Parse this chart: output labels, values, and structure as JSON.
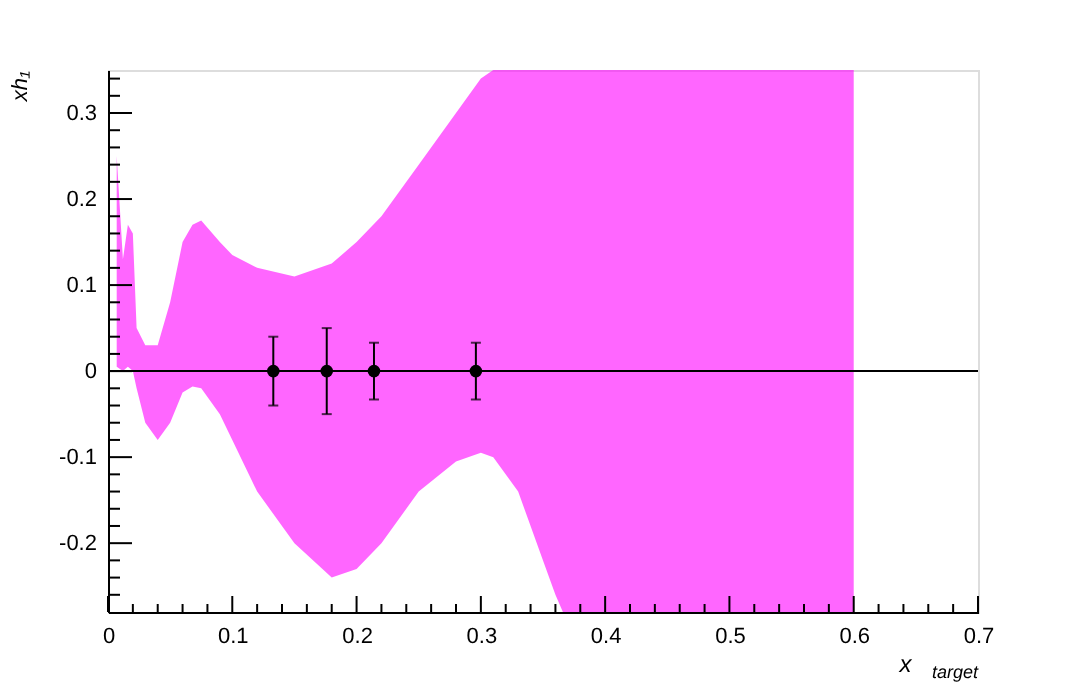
{
  "chart_data": {
    "type": "line",
    "xlabel": "x$_{target}$",
    "ylabel": "xh₁",
    "xlim": [
      0,
      0.7
    ],
    "ylim": [
      -0.28,
      0.35
    ],
    "xticks": [
      0,
      {
        "value": 0.02,
        "label": null
      },
      {
        "value": 0.04,
        "label": null
      },
      {
        "value": 0.06,
        "label": null
      },
      {
        "value": 0.08,
        "label": null
      },
      0.1,
      {
        "value": 0.12,
        "label": null
      },
      {
        "value": 0.14,
        "label": null
      },
      {
        "value": 0.16,
        "label": null
      },
      {
        "value": 0.18,
        "label": null
      },
      0.2,
      {
        "value": 0.22,
        "label": null
      },
      {
        "value": 0.24,
        "label": null
      },
      {
        "value": 0.26,
        "label": null
      },
      {
        "value": 0.28,
        "label": null
      },
      0.3,
      {
        "value": 0.32,
        "label": null
      },
      {
        "value": 0.34,
        "label": null
      },
      {
        "value": 0.36,
        "label": null
      },
      {
        "value": 0.38,
        "label": null
      },
      0.4,
      {
        "value": 0.42,
        "label": null
      },
      {
        "value": 0.44,
        "label": null
      },
      {
        "value": 0.46,
        "label": null
      },
      {
        "value": 0.48,
        "label": null
      },
      0.5,
      {
        "value": 0.52,
        "label": null
      },
      {
        "value": 0.54,
        "label": null
      },
      {
        "value": 0.56,
        "label": null
      },
      {
        "value": 0.58,
        "label": null
      },
      0.6,
      {
        "value": 0.62,
        "label": null
      },
      {
        "value": 0.64,
        "label": null
      },
      {
        "value": 0.66,
        "label": null
      },
      {
        "value": 0.68,
        "label": null
      },
      0.7
    ],
    "yticks": [
      {
        "value": -0.26,
        "label": null
      },
      {
        "value": -0.24,
        "label": null
      },
      {
        "value": -0.22,
        "label": null
      },
      -0.2,
      {
        "value": -0.18,
        "label": null
      },
      {
        "value": -0.16,
        "label": null
      },
      {
        "value": -0.14,
        "label": null
      },
      {
        "value": -0.12,
        "label": null
      },
      -0.1,
      {
        "value": -0.08,
        "label": null
      },
      {
        "value": -0.06,
        "label": null
      },
      {
        "value": -0.04,
        "label": null
      },
      {
        "value": -0.02,
        "label": null
      },
      0,
      {
        "value": 0.02,
        "label": null
      },
      {
        "value": 0.04,
        "label": null
      },
      {
        "value": 0.06,
        "label": null
      },
      {
        "value": 0.08,
        "label": null
      },
      0.1,
      {
        "value": 0.12,
        "label": null
      },
      {
        "value": 0.14,
        "label": null
      },
      {
        "value": 0.16,
        "label": null
      },
      {
        "value": 0.18,
        "label": null
      },
      0.2,
      {
        "value": 0.22,
        "label": null
      },
      {
        "value": 0.24,
        "label": null
      },
      {
        "value": 0.26,
        "label": null
      },
      {
        "value": 0.28,
        "label": null
      },
      0.3,
      {
        "value": 0.32,
        "label": null
      },
      {
        "value": 0.34,
        "label": null
      }
    ],
    "grid": false,
    "series": [
      {
        "type": "area",
        "color": "#ff00ff",
        "values": [
          null,
          null,
          null,
          null,
          null,
          null,
          null,
          null,
          null,
          null,
          null,
          null,
          null,
          null,
          null,
          null,
          null,
          null,
          null,
          null,
          null,
          null,
          null,
          null,
          null,
          null,
          null
        ],
        "x": [
          0.007,
          0.012,
          0.016,
          0.02,
          0.023,
          0.03,
          0.04,
          0.05,
          0.06,
          0.068,
          0.075,
          0.09,
          0.1,
          0.12,
          0.15,
          0.18,
          0.2,
          0.22,
          0.25,
          0.28,
          0.3,
          0.31,
          0.33,
          0.35,
          0.36,
          0.366,
          0.6
        ],
        "lower": [
          0.005,
          0.0,
          0.005,
          0.0,
          -0.02,
          -0.06,
          -0.08,
          -0.06,
          -0.025,
          -0.018,
          -0.02,
          -0.05,
          -0.08,
          -0.14,
          -0.2,
          -0.24,
          -0.23,
          -0.2,
          -0.14,
          -0.105,
          -0.095,
          -0.1,
          -0.14,
          -0.22,
          -0.26,
          -0.28,
          -0.28
        ],
        "upper": [
          0.25,
          0.13,
          0.17,
          0.16,
          0.05,
          0.03,
          0.03,
          0.08,
          0.15,
          0.17,
          0.175,
          0.15,
          0.135,
          0.12,
          0.11,
          0.125,
          0.15,
          0.18,
          0.24,
          0.3,
          0.34,
          0.35,
          0.35,
          0.35,
          0.35,
          0.35,
          0.35
        ]
      },
      {
        "type": "scatter",
        "color": "#000000",
        "marker": "circle",
        "x": [
          0.133,
          0.176,
          0.214,
          0.296
        ],
        "values": [
          0,
          0,
          0,
          0
        ],
        "errors": [
          0.04,
          0.05,
          0.033,
          0.033
        ]
      }
    ],
    "ref_lines": [
      {
        "axis": "y",
        "value": 0,
        "color": "#000000"
      }
    ]
  }
}
